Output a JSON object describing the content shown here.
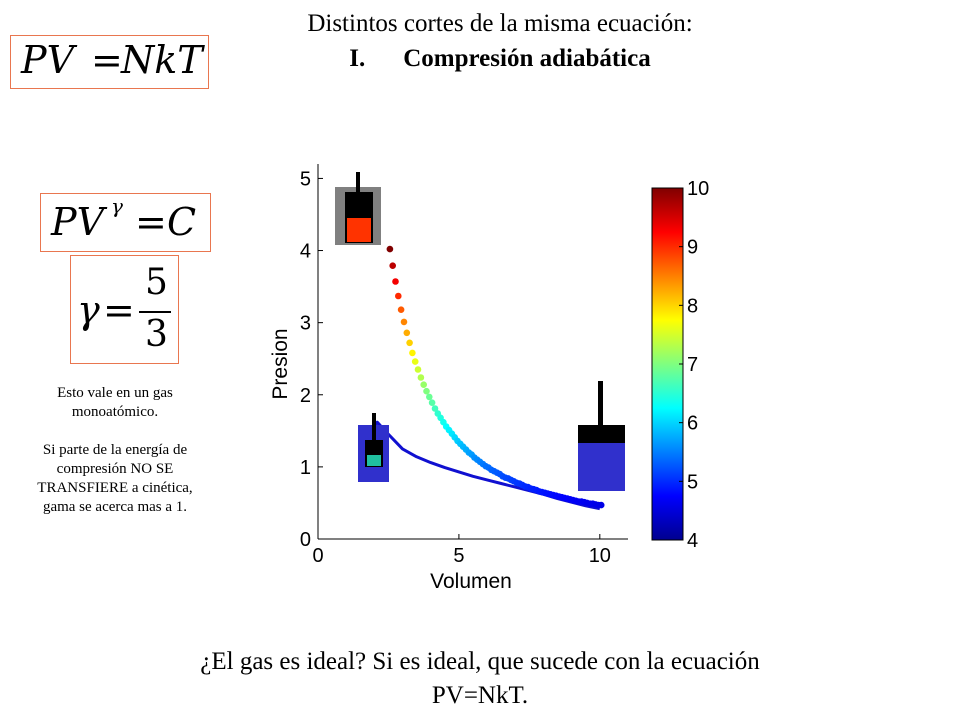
{
  "title": {
    "line1": "Distintos cortes de la misma ecuación:",
    "line2_number": "I.",
    "line2_text": "Compresión adiabática"
  },
  "equations": {
    "ideal_gas": {
      "lhs": "PV",
      "rhs": "NkT"
    },
    "adiabatic": {
      "lhs": "PV",
      "exponent": "γ",
      "rhs": "C"
    },
    "gamma": {
      "symbol": "γ",
      "numerator": "5",
      "denominator": "3"
    }
  },
  "note": {
    "paragraph1": "Esto vale en un gas monoatómico.",
    "paragraph2": "Si parte de la energía de compresión NO SE TRANSFIERE a cinética, gama se acerca mas a 1."
  },
  "question": {
    "line1": "¿El gas es ideal? Si es ideal, que sucede con la ecuación",
    "line2": "PV=NkT."
  },
  "chart_data": {
    "type": "scatter",
    "xlabel": "Volumen",
    "ylabel": "Presion",
    "xlim": [
      0,
      11
    ],
    "ylim": [
      0,
      5.2
    ],
    "xticks": [
      0,
      5,
      10
    ],
    "yticks": [
      0,
      1,
      2,
      3,
      4,
      5
    ],
    "grid": false,
    "colormap": "jet",
    "colorbar": {
      "min": 4,
      "max": 10,
      "ticks": [
        4,
        5,
        6,
        7,
        8,
        9,
        10
      ]
    },
    "series": [
      {
        "style": "dots",
        "x": [
          2.55,
          2.65,
          2.75,
          2.85,
          2.95,
          3.05,
          3.15,
          3.25,
          3.35,
          3.45,
          3.55,
          3.65,
          3.75,
          3.85,
          3.95,
          4.05,
          4.15,
          4.25,
          4.35,
          4.45,
          4.55,
          4.65,
          4.75,
          4.85,
          4.95,
          5.05,
          5.15,
          5.25,
          5.35,
          5.45,
          5.55,
          5.65,
          5.75,
          5.85,
          5.95,
          6.05,
          6.15,
          6.25,
          6.35,
          6.45,
          6.55,
          6.65,
          6.75,
          6.85,
          6.95,
          7.05,
          7.15,
          7.25,
          7.35,
          7.45,
          7.55,
          7.65,
          7.75,
          7.85,
          7.95,
          8.05,
          8.15,
          8.25,
          8.35,
          8.45,
          8.55,
          8.65,
          8.75,
          8.85,
          8.95,
          9.05,
          9.15,
          9.25,
          9.35,
          9.45,
          9.55,
          9.65,
          9.75,
          9.85,
          9.95,
          10.05
        ],
        "y": [
          4.02,
          3.79,
          3.57,
          3.37,
          3.18,
          3.01,
          2.86,
          2.72,
          2.58,
          2.46,
          2.35,
          2.24,
          2.14,
          2.05,
          1.97,
          1.89,
          1.81,
          1.74,
          1.68,
          1.62,
          1.56,
          1.51,
          1.46,
          1.41,
          1.36,
          1.32,
          1.28,
          1.24,
          1.2,
          1.17,
          1.13,
          1.1,
          1.07,
          1.04,
          1.01,
          0.99,
          0.96,
          0.94,
          0.92,
          0.9,
          0.87,
          0.85,
          0.84,
          0.82,
          0.8,
          0.78,
          0.77,
          0.75,
          0.73,
          0.72,
          0.7,
          0.69,
          0.68,
          0.66,
          0.65,
          0.64,
          0.63,
          0.62,
          0.61,
          0.6,
          0.59,
          0.58,
          0.57,
          0.56,
          0.55,
          0.54,
          0.53,
          0.52,
          0.52,
          0.51,
          0.5,
          0.49,
          0.49,
          0.48,
          0.47,
          0.47
        ]
      },
      {
        "style": "line",
        "x": [
          1.65,
          2.1,
          2.5,
          3.0,
          3.5,
          4.0,
          4.5,
          5.0,
          5.5,
          6.0,
          6.5,
          7.0,
          7.5,
          8.0,
          8.5,
          9.0,
          9.5,
          10.0
        ],
        "y": [
          1.3,
          1.62,
          1.45,
          1.25,
          1.14,
          1.06,
          0.99,
          0.93,
          0.87,
          0.82,
          0.77,
          0.72,
          0.67,
          0.62,
          0.56,
          0.51,
          0.46,
          0.42
        ]
      }
    ]
  }
}
